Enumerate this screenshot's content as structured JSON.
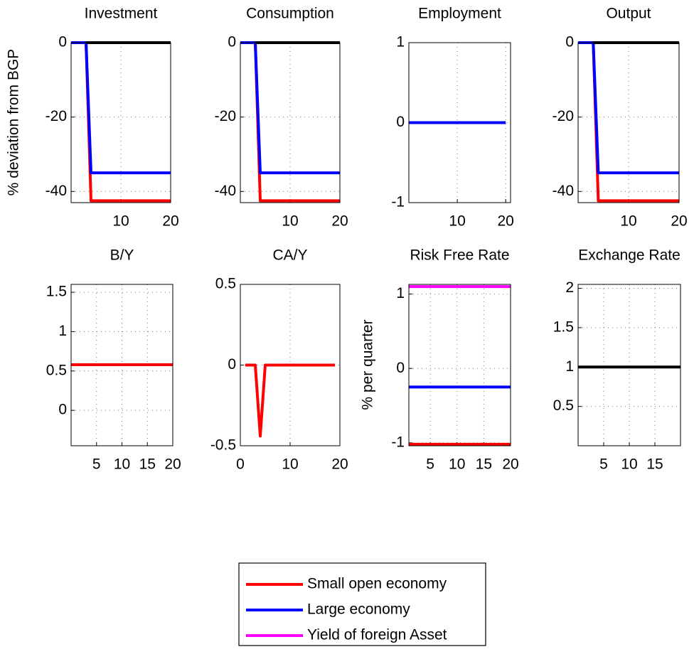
{
  "chart_data": [
    {
      "type": "line",
      "title": "Investment",
      "ylabel": "% deviation from BGP",
      "xlim": [
        0,
        20
      ],
      "xticks": [
        10,
        20
      ],
      "ylim": [
        -43,
        0
      ],
      "yticks": [
        -40,
        -20,
        0
      ],
      "grid": true,
      "x": [
        0,
        3,
        4,
        20
      ],
      "series": [
        {
          "name": "Small open economy",
          "color": "#ff0000",
          "values": [
            0,
            0,
            -42.5,
            -42.5
          ]
        },
        {
          "name": "Large economy",
          "color": "#0000ff",
          "values": [
            0,
            0,
            -35,
            -35
          ]
        },
        {
          "color": "#000000",
          "values": [
            null,
            0,
            0,
            0
          ]
        }
      ]
    },
    {
      "type": "line",
      "title": "Consumption",
      "xlim": [
        0,
        20
      ],
      "xticks": [
        10,
        20
      ],
      "ylim": [
        -43,
        0
      ],
      "yticks": [
        -40,
        -20,
        0
      ],
      "grid": true,
      "x": [
        0,
        3,
        4,
        20
      ],
      "series": [
        {
          "color": "#ff0000",
          "values": [
            0,
            0,
            -42.5,
            -42.5
          ]
        },
        {
          "color": "#0000ff",
          "values": [
            0,
            0,
            -35,
            -35
          ]
        },
        {
          "color": "#000000",
          "values": [
            null,
            0,
            0,
            0
          ]
        }
      ]
    },
    {
      "type": "line",
      "title": "Employment",
      "xlim": [
        0,
        21
      ],
      "xticks": [
        10,
        20
      ],
      "ylim": [
        -1,
        1
      ],
      "yticks": [
        -1,
        0,
        1
      ],
      "grid": true,
      "x": [
        0,
        20
      ],
      "series": [
        {
          "color": "#0000ff",
          "values": [
            0,
            0
          ]
        }
      ]
    },
    {
      "type": "line",
      "title": "Output",
      "xlim": [
        0,
        20
      ],
      "xticks": [
        10,
        20
      ],
      "ylim": [
        -43,
        0
      ],
      "yticks": [
        -40,
        -20,
        0
      ],
      "grid": true,
      "x": [
        0,
        3,
        4,
        20
      ],
      "series": [
        {
          "color": "#ff0000",
          "values": [
            0,
            0,
            -42.5,
            -42.5
          ]
        },
        {
          "color": "#0000ff",
          "values": [
            0,
            0,
            -35,
            -35
          ]
        },
        {
          "color": "#000000",
          "values": [
            null,
            0,
            0,
            0
          ]
        }
      ]
    },
    {
      "type": "line",
      "title": "B/Y",
      "xlim": [
        0,
        20
      ],
      "xticks": [
        5,
        10,
        15,
        20
      ],
      "ylim": [
        -0.45,
        1.6
      ],
      "yticks": [
        0,
        0.5,
        1,
        1.5
      ],
      "grid": true,
      "x": [
        0,
        20
      ],
      "series": [
        {
          "color": "#ff0000",
          "values": [
            0.58,
            0.58
          ]
        }
      ]
    },
    {
      "type": "line",
      "title": "CA/Y",
      "xlim": [
        0,
        20
      ],
      "xticks": [
        0,
        10,
        20
      ],
      "ylim": [
        -0.5,
        0.5
      ],
      "yticks": [
        -0.5,
        0,
        0.5
      ],
      "grid": true,
      "x": [
        1,
        3,
        4,
        5,
        19
      ],
      "series": [
        {
          "color": "#ff0000",
          "values": [
            0,
            0,
            -0.44,
            0,
            0
          ]
        }
      ]
    },
    {
      "type": "line",
      "title": "Risk Free Rate",
      "ylabel": "% per quarter",
      "xlim": [
        1,
        20
      ],
      "xticks": [
        5,
        10,
        15,
        20
      ],
      "ylim": [
        -1.04,
        1.13
      ],
      "yticks": [
        -1,
        0,
        1
      ],
      "grid": true,
      "x": [
        1,
        20
      ],
      "series": [
        {
          "color": "#ff0000",
          "values": [
            -1.02,
            -1.02
          ]
        },
        {
          "color": "#0000ff",
          "values": [
            -0.25,
            -0.25
          ]
        },
        {
          "name": "Yield of foreign Asset",
          "color": "#ff00ff",
          "values": [
            1.1,
            1.1
          ]
        }
      ]
    },
    {
      "type": "line",
      "title": "Exchange Rate",
      "xlim": [
        0,
        20
      ],
      "xticks": [
        5,
        10,
        15
      ],
      "ylim": [
        0,
        2.05
      ],
      "yticks": [
        0.5,
        1,
        1.5,
        2
      ],
      "grid": true,
      "x": [
        0,
        20
      ],
      "series": [
        {
          "color": "#000000",
          "values": [
            1,
            1
          ]
        }
      ]
    }
  ]
}
